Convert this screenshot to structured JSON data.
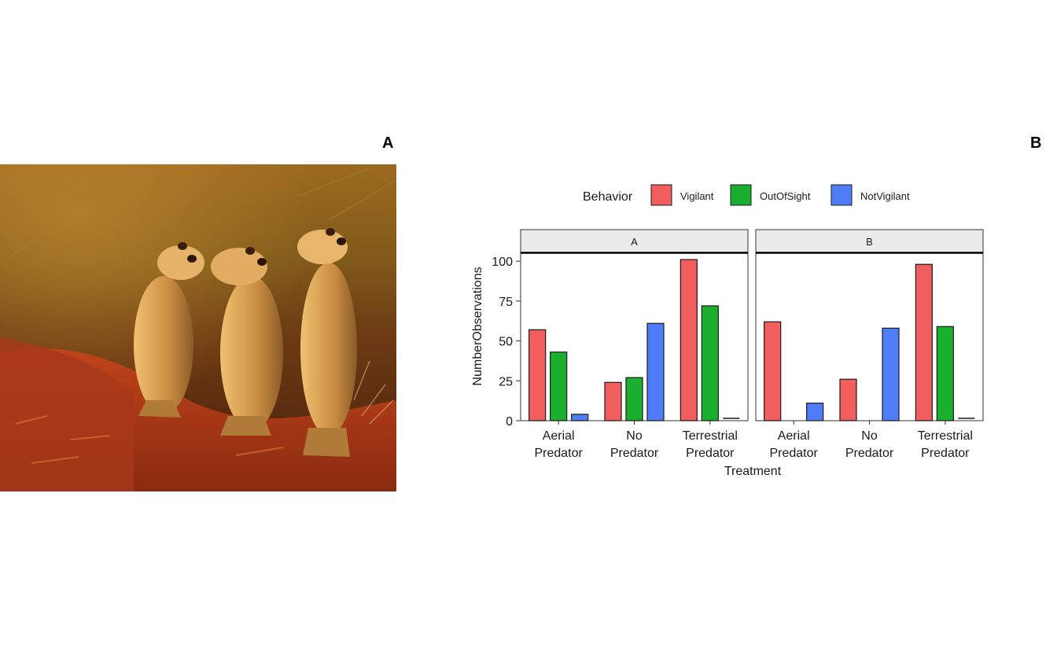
{
  "panel_labels": {
    "left": "A",
    "right": "B"
  },
  "photo": {
    "subject": "three meerkats standing upright on red soil"
  },
  "colors": {
    "Vigilant": "#f25d5d",
    "OutOfSight": "#1aaf2e",
    "NotVigilant": "#4f7df7",
    "strip_fill": "#ebebeb"
  },
  "chart_data": {
    "type": "bar",
    "legend_title": "Behavior",
    "legend_placement": "top",
    "xlabel": "Treatment",
    "ylabel": "NumberObservations",
    "ylim": [
      0,
      105
    ],
    "yticks": [
      0,
      25,
      50,
      75,
      100
    ],
    "categories": [
      [
        "Aerial",
        "Predator"
      ],
      [
        "No",
        "Predator"
      ],
      [
        "Terrestrial",
        "Predator"
      ]
    ],
    "facets": [
      {
        "name": "A",
        "series": [
          {
            "name": "Vigilant",
            "values": [
              57,
              24,
              101
            ]
          },
          {
            "name": "OutOfSight",
            "values": [
              43,
              27,
              72
            ]
          },
          {
            "name": "NotVigilant",
            "values": [
              4,
              61,
              0
            ]
          }
        ]
      },
      {
        "name": "B",
        "series": [
          {
            "name": "Vigilant",
            "values": [
              62,
              26,
              98
            ]
          },
          {
            "name": "OutOfSight",
            "values": [
              null,
              null,
              59
            ]
          },
          {
            "name": "NotVigilant",
            "values": [
              11,
              58,
              0
            ]
          }
        ]
      }
    ]
  }
}
